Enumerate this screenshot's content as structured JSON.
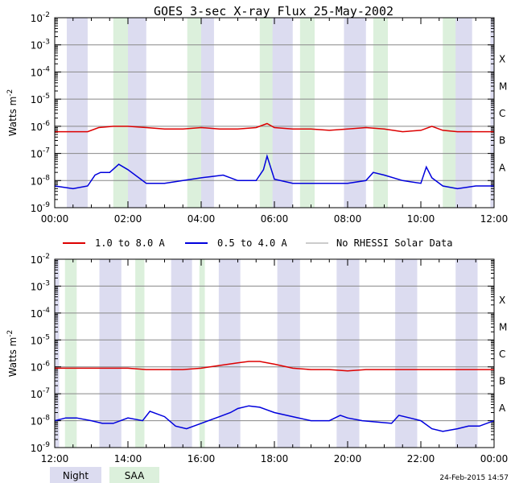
{
  "title": "GOES 3-sec X-ray Flux   25-May-2002",
  "footer_timestamp": "24-Feb-2015 14:57",
  "legend": {
    "long_label": "1.0 to 8.0 A",
    "short_label": "0.5 to 4.0 A",
    "norhessi_label": "No RHESSI Solar Data",
    "night_label": "Night",
    "saa_label": "SAA",
    "long_color": "#dd0000",
    "short_color": "#0000dd",
    "norhessi_color": "#999999",
    "night_color": "#dcdcf0",
    "saa_color": "#dcf0dc"
  },
  "chart_data": [
    {
      "type": "line",
      "ylabel": "Watts m",
      "ylabel_sup": "-2",
      "x_range_hours": [
        0,
        12
      ],
      "x_ticks": [
        "00:00",
        "02:00",
        "04:00",
        "06:00",
        "08:00",
        "10:00",
        "12:00"
      ],
      "y_scale": "log",
      "y_range_exp": [
        -9,
        -2
      ],
      "y_ticks_exp": [
        -9,
        -8,
        -7,
        -6,
        -5,
        -4,
        -3,
        -2
      ],
      "class_labels": [
        "A",
        "B",
        "C",
        "M",
        "X"
      ],
      "night_hours": [
        [
          0.33,
          0.9
        ],
        [
          1.93,
          2.5
        ],
        [
          3.95,
          4.35
        ],
        [
          5.93,
          6.5
        ],
        [
          7.9,
          8.5
        ],
        [
          10.9,
          11.4
        ],
        [
          11.9,
          12.0
        ]
      ],
      "saa_hours": [
        [
          1.6,
          2.0
        ],
        [
          3.62,
          4.0
        ],
        [
          5.6,
          5.95
        ],
        [
          6.7,
          7.1
        ],
        [
          8.7,
          9.1
        ],
        [
          10.6,
          10.95
        ],
        [
          0.0,
          0.0
        ]
      ],
      "series": [
        {
          "name": "1.0 to 8.0 A",
          "color_key": "long",
          "x": [
            0.0,
            0.9,
            1.2,
            1.6,
            2.0,
            2.5,
            3.0,
            3.5,
            4.0,
            4.5,
            5.0,
            5.5,
            5.8,
            6.0,
            6.5,
            7.0,
            7.5,
            8.0,
            8.5,
            9.0,
            9.5,
            10.0,
            10.3,
            10.6,
            11.0,
            11.5,
            12.0
          ],
          "y_exp": [
            -6.2,
            -6.2,
            -6.05,
            -6.0,
            -6.0,
            -6.05,
            -6.1,
            -6.1,
            -6.05,
            -6.1,
            -6.1,
            -6.05,
            -5.9,
            -6.05,
            -6.1,
            -6.1,
            -6.15,
            -6.1,
            -6.05,
            -6.1,
            -6.2,
            -6.15,
            -6.0,
            -6.15,
            -6.2,
            -6.2,
            -6.2
          ]
        },
        {
          "name": "0.5 to 4.0 A",
          "color_key": "short",
          "x": [
            0.0,
            0.5,
            0.9,
            1.1,
            1.25,
            1.5,
            1.75,
            2.0,
            2.5,
            3.0,
            3.5,
            4.0,
            4.3,
            4.6,
            5.0,
            5.5,
            5.7,
            5.8,
            6.0,
            6.5,
            7.0,
            7.5,
            8.0,
            8.5,
            8.7,
            9.0,
            9.5,
            10.0,
            10.15,
            10.3,
            10.6,
            11.0,
            11.5,
            12.0
          ],
          "y_exp": [
            -8.2,
            -8.3,
            -8.2,
            -7.8,
            -7.7,
            -7.7,
            -7.4,
            -7.6,
            -8.1,
            -8.1,
            -8.0,
            -7.9,
            -7.85,
            -7.8,
            -8.0,
            -8.0,
            -7.6,
            -7.1,
            -7.95,
            -8.1,
            -8.1,
            -8.1,
            -8.1,
            -8.0,
            -7.7,
            -7.8,
            -8.0,
            -8.1,
            -7.5,
            -7.9,
            -8.2,
            -8.3,
            -8.2,
            -8.2
          ]
        }
      ]
    },
    {
      "type": "line",
      "ylabel": "Watts m",
      "ylabel_sup": "-2",
      "x_range_hours": [
        12,
        24
      ],
      "x_ticks": [
        "12:00",
        "14:00",
        "16:00",
        "18:00",
        "20:00",
        "22:00",
        "00:00"
      ],
      "y_scale": "log",
      "y_range_exp": [
        -9,
        -2
      ],
      "y_ticks_exp": [
        -9,
        -8,
        -7,
        -6,
        -5,
        -4,
        -3,
        -2
      ],
      "class_labels": [
        "A",
        "B",
        "C",
        "M",
        "X"
      ],
      "night_hours": [
        [
          12.0,
          12.12
        ],
        [
          13.22,
          13.82
        ],
        [
          15.18,
          15.75
        ],
        [
          16.48,
          17.07
        ],
        [
          18.08,
          18.7
        ],
        [
          19.7,
          20.32
        ],
        [
          21.3,
          21.9
        ],
        [
          22.95,
          23.55
        ]
      ],
      "saa_hours": [
        [
          12.28,
          12.6
        ],
        [
          14.2,
          14.45
        ],
        [
          15.95,
          16.1
        ]
      ],
      "series": [
        {
          "name": "1.0 to 8.0 A",
          "color_key": "long",
          "x": [
            12.0,
            12.5,
            13.0,
            13.5,
            14.0,
            14.5,
            15.0,
            15.5,
            16.0,
            16.5,
            17.0,
            17.3,
            17.6,
            18.0,
            18.5,
            19.0,
            19.5,
            20.0,
            20.5,
            21.0,
            21.5,
            22.0,
            22.5,
            23.0,
            23.5,
            24.0
          ],
          "y_exp": [
            -6.05,
            -6.05,
            -6.05,
            -6.05,
            -6.05,
            -6.1,
            -6.1,
            -6.1,
            -6.05,
            -5.95,
            -5.85,
            -5.8,
            -5.8,
            -5.9,
            -6.05,
            -6.1,
            -6.1,
            -6.15,
            -6.1,
            -6.1,
            -6.1,
            -6.1,
            -6.1,
            -6.1,
            -6.1,
            -6.1
          ]
        },
        {
          "name": "0.5 to 4.0 A",
          "color_key": "short",
          "x": [
            12.0,
            12.3,
            12.6,
            13.0,
            13.3,
            13.6,
            14.0,
            14.4,
            14.6,
            15.0,
            15.3,
            15.6,
            16.0,
            16.5,
            16.8,
            17.0,
            17.3,
            17.6,
            18.0,
            18.5,
            19.0,
            19.5,
            19.8,
            20.0,
            20.4,
            20.8,
            21.2,
            21.4,
            21.7,
            22.0,
            22.3,
            22.6,
            22.8,
            23.0,
            23.3,
            23.6,
            24.0
          ],
          "y_exp": [
            -8.0,
            -7.9,
            -7.9,
            -8.0,
            -8.1,
            -8.1,
            -7.9,
            -8.0,
            -7.65,
            -7.85,
            -8.2,
            -8.3,
            -8.1,
            -7.85,
            -7.7,
            -7.55,
            -7.45,
            -7.5,
            -7.7,
            -7.85,
            -8.0,
            -8.0,
            -7.8,
            -7.9,
            -8.0,
            -8.05,
            -8.1,
            -7.8,
            -7.9,
            -8.0,
            -8.3,
            -8.4,
            -8.35,
            -8.3,
            -8.2,
            -8.2,
            -8.0
          ]
        }
      ]
    }
  ]
}
